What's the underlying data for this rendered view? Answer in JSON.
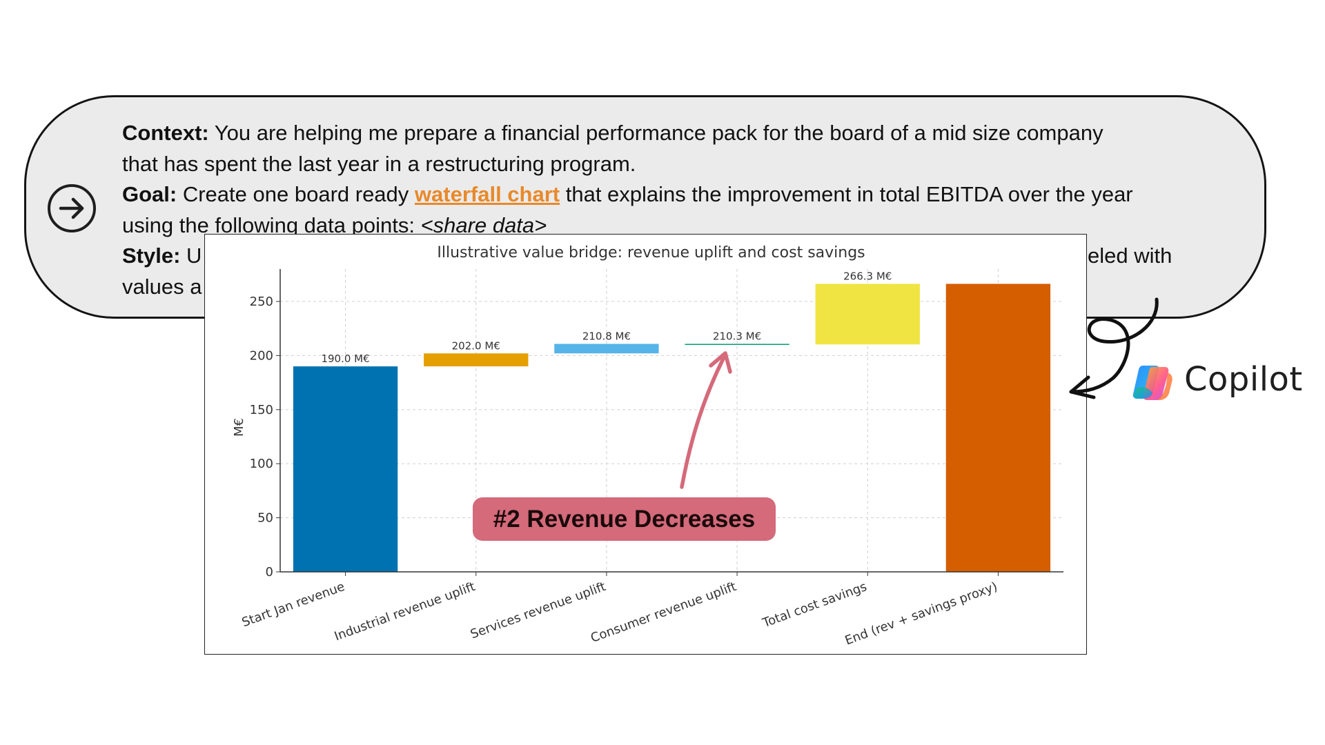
{
  "prompt": {
    "context_label": "Context:",
    "context_line1": " You are helping me prepare a financial performance pack for the board of a mid size company",
    "context_line2": "that has spent the last year in a restructuring program.",
    "goal_label": "Goal:",
    "goal_pre": " Create one board ready ",
    "goal_link": "waterfall chart",
    "goal_post": " that explains the improvement in total EBITDA over the year",
    "goal_line2_pre": "using the following data points: ",
    "goal_line2_data": "<share data>",
    "style_label": "Style:",
    "style_start": " U",
    "style_end": "eled with",
    "line5_start": "values a"
  },
  "callout": {
    "label": "#2 Revenue Decreases",
    "color": "#d46a7a"
  },
  "brand": {
    "name": "Copilot"
  },
  "chart_data": {
    "type": "waterfall",
    "title": "Illustrative value bridge: revenue uplift and cost savings",
    "ylabel": "M€",
    "xlabel": "",
    "ylim": [
      0,
      280
    ],
    "yticks": [
      0,
      50,
      100,
      150,
      200,
      250
    ],
    "grid": true,
    "categories": [
      "Start Jan revenue",
      "Industrial revenue uplift",
      "Services revenue uplift",
      "Consumer revenue uplift",
      "Total cost savings",
      "End (rev + savings proxy)"
    ],
    "bars": [
      {
        "base": 0,
        "top": 190.0,
        "label": "190.0 M€",
        "color": "#0072b2"
      },
      {
        "base": 190.0,
        "top": 202.0,
        "label": "202.0 M€",
        "color": "#e69f00"
      },
      {
        "base": 202.0,
        "top": 210.8,
        "label": "210.8 M€",
        "color": "#56b4e9"
      },
      {
        "base": 210.3,
        "top": 210.8,
        "label": "210.3 M€",
        "color": "#009e73"
      },
      {
        "base": 210.3,
        "top": 266.3,
        "label": "266.3 M€",
        "color": "#f0e442"
      },
      {
        "base": 0,
        "top": 266.3,
        "label": "",
        "color": "#d55e00"
      }
    ]
  }
}
